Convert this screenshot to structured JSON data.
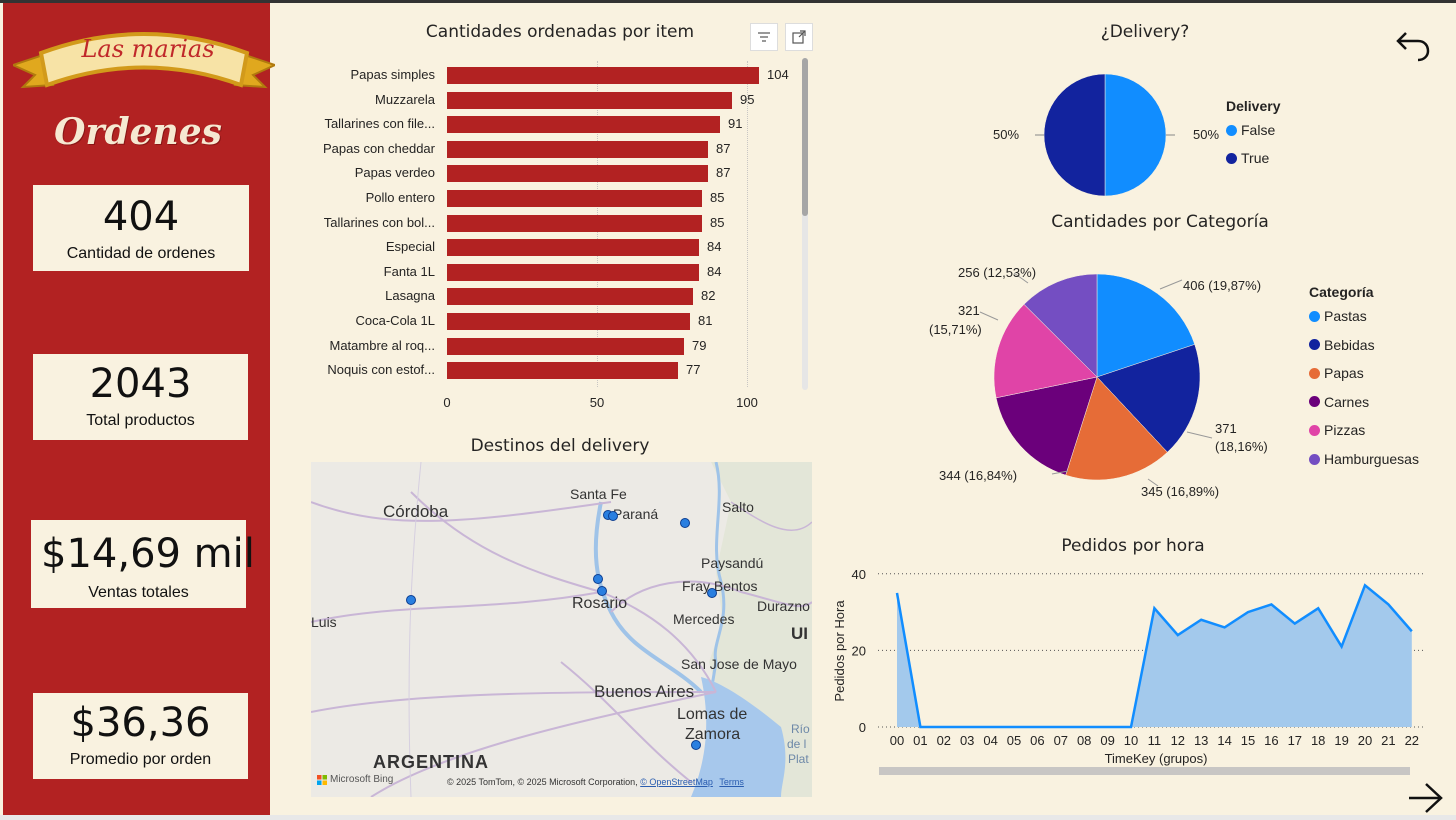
{
  "sidebar": {
    "logo_text": "Las marias",
    "page_title": "Ordenes",
    "kpis": [
      {
        "value": "404",
        "label": "Cantidad de ordenes"
      },
      {
        "value": "2043",
        "label": "Total productos"
      },
      {
        "value": "$14,69 mil",
        "label": "Ventas totales"
      },
      {
        "value": "$36,36",
        "label": "Promedio por orden"
      }
    ]
  },
  "bar_chart": {
    "title": "Cantidades ordenadas por item",
    "toolbar": {
      "filter_icon": "filter-icon",
      "focus_icon": "focus-mode-icon"
    }
  },
  "map": {
    "title": "Destinos del delivery",
    "labels": {
      "cordoba": "Córdoba",
      "santa_fe": "Santa Fe",
      "parana": "Paraná",
      "salto": "Salto",
      "paysandu": "Paysandú",
      "fray_bentos": "Fray Bentos",
      "rosario": "Rosario",
      "mercedes": "Mercedes",
      "durazno": "Durazno",
      "luis": "Luis",
      "ur": "UI",
      "san_jose": "San Jose de Mayo",
      "buenos_aires": "Buenos Aires",
      "lomas": "Lomas de",
      "zamora": "Zamora",
      "rio": "Río",
      "de_la": "de l",
      "plat": "Plat",
      "argentina": "ARGENTINA"
    },
    "bing": "Microsoft Bing",
    "copyright": "© 2025 TomTom, © 2025 Microsoft Corporation,",
    "osm": "© OpenStreetMap",
    "terms": "Terms"
  },
  "delivery_pie": {
    "title": "¿Delivery?",
    "legend_title": "Delivery",
    "left_label": "50%",
    "right_label": "50%",
    "slices": [
      {
        "name": "False",
        "value": 50,
        "color": "#118dff"
      },
      {
        "name": "True",
        "value": 50,
        "color": "#12239e"
      }
    ]
  },
  "category_pie": {
    "title": "Cantidades por Categoría",
    "legend_title": "Categoría",
    "labels": {
      "pastas": "406 (19,87%)",
      "bebidas_1": "371",
      "bebidas_2": "(18,16%)",
      "papas": "345 (16,89%)",
      "carnes": "344 (16,84%)",
      "pizzas_1": "321",
      "pizzas_2": "(15,71%)",
      "hamburguesas": "256 (12,53%)"
    }
  },
  "line_chart": {
    "title": "Pedidos por hora",
    "ylabel": "Pedidos por Hora",
    "xlabel": "TimeKey (grupos)"
  },
  "nav": {
    "back_icon": "back-arrow-icon",
    "next_icon": "next-arrow-icon"
  },
  "chart_data": [
    {
      "type": "bar",
      "title": "Cantidades ordenadas por item",
      "categories": [
        "Papas simples",
        "Muzzarela",
        "Tallarines con file...",
        "Papas con cheddar",
        "Papas verdeo",
        "Pollo entero",
        "Tallarines con bol...",
        "Especial",
        "Fanta 1L",
        "Lasagna",
        "Coca-Cola 1L",
        "Matambre al roq...",
        "Noquis con estof..."
      ],
      "values": [
        104,
        95,
        91,
        87,
        87,
        85,
        85,
        84,
        84,
        82,
        81,
        79,
        77
      ],
      "xticks": [
        "0",
        "50",
        "100"
      ],
      "xlim": [
        0,
        120
      ],
      "color": "#b22222"
    },
    {
      "type": "pie",
      "title": "¿Delivery?",
      "categories": [
        "False",
        "True"
      ],
      "values": [
        50,
        50
      ]
    },
    {
      "type": "pie",
      "title": "Cantidades por Categoría",
      "categories": [
        "Pastas",
        "Bebidas",
        "Papas",
        "Carnes",
        "Pizzas",
        "Hamburguesas"
      ],
      "values": [
        406,
        371,
        345,
        344,
        321,
        256
      ],
      "colors": [
        "#118dff",
        "#12239e",
        "#e66c37",
        "#6b007b",
        "#e044a7",
        "#744ec2"
      ]
    },
    {
      "type": "area",
      "title": "Pedidos por hora",
      "xlabel": "TimeKey (grupos)",
      "ylabel": "Pedidos por Hora",
      "x": [
        "00",
        "01",
        "02",
        "03",
        "04",
        "05",
        "06",
        "07",
        "08",
        "09",
        "10",
        "11",
        "12",
        "13",
        "14",
        "15",
        "16",
        "17",
        "18",
        "19",
        "20",
        "21",
        "22"
      ],
      "values": [
        35,
        0,
        0,
        0,
        0,
        0,
        0,
        0,
        0,
        0,
        0,
        31,
        24,
        28,
        26,
        30,
        32,
        27,
        31,
        21,
        37,
        32,
        25
      ],
      "yticks": [
        "0",
        "20",
        "40"
      ],
      "ylim": [
        0,
        42
      ],
      "color": "#118dff",
      "fill": "#a3c9ec"
    }
  ]
}
